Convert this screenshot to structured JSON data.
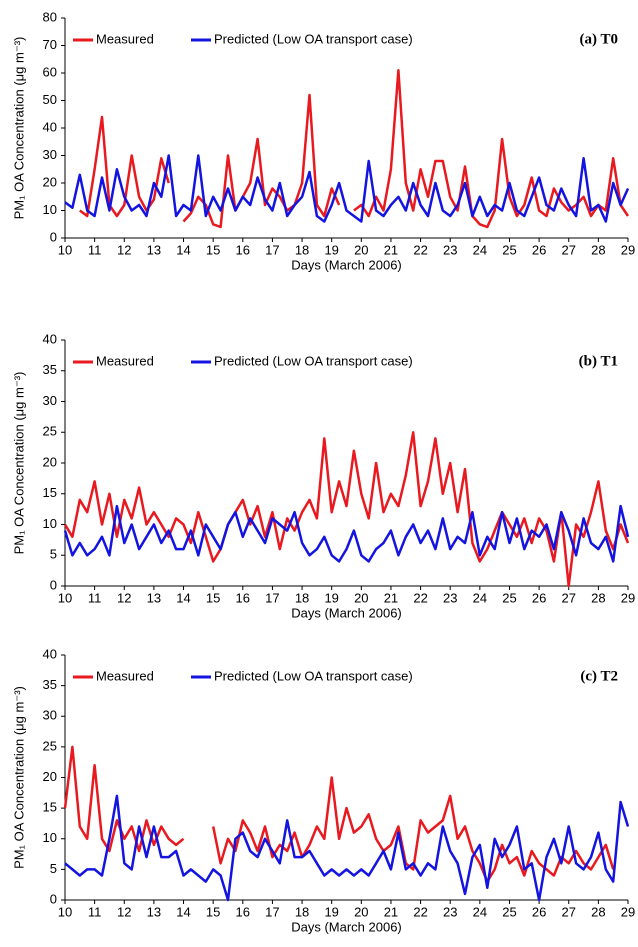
{
  "chart_data": [
    {
      "type": "line",
      "panel_label": "(a) T0",
      "xlabel": "Days (March 2006)",
      "ylabel": "PM₁ OA Concentration (μg m⁻³)",
      "xlim": [
        10,
        29
      ],
      "xticks": [
        10,
        11,
        12,
        13,
        14,
        15,
        16,
        17,
        18,
        19,
        20,
        21,
        22,
        23,
        24,
        25,
        26,
        27,
        28,
        29
      ],
      "ylim": [
        0,
        80
      ],
      "yticks": [
        0,
        10,
        20,
        30,
        40,
        50,
        60,
        70,
        80
      ],
      "legend": "top-left",
      "x": [
        10,
        10.25,
        10.5,
        10.75,
        11,
        11.25,
        11.5,
        11.75,
        12,
        12.25,
        12.5,
        12.75,
        13,
        13.25,
        13.5,
        13.75,
        14,
        14.25,
        14.5,
        14.75,
        15,
        15.25,
        15.5,
        15.75,
        16,
        16.25,
        16.5,
        16.75,
        17,
        17.25,
        17.5,
        17.75,
        18,
        18.25,
        18.5,
        18.75,
        19,
        19.25,
        19.5,
        19.75,
        20,
        20.25,
        20.5,
        20.75,
        21,
        21.25,
        21.5,
        21.75,
        22,
        22.25,
        22.5,
        22.75,
        23,
        23.25,
        23.5,
        23.75,
        24,
        24.25,
        24.5,
        24.75,
        25,
        25.25,
        25.5,
        25.75,
        26,
        26.25,
        26.5,
        26.75,
        27,
        27.25,
        27.5,
        27.75,
        28,
        28.25,
        28.5,
        28.75,
        29
      ],
      "series": [
        {
          "name": "Measured",
          "color": "#e8191f",
          "values": [
            null,
            null,
            10,
            8,
            25,
            44,
            12,
            8,
            12,
            30,
            15,
            10,
            14,
            29,
            20,
            null,
            6,
            9,
            15,
            12,
            5,
            4,
            30,
            10,
            15,
            20,
            36,
            12,
            18,
            15,
            10,
            12,
            20,
            52,
            12,
            8,
            18,
            12,
            null,
            10,
            12,
            8,
            15,
            10,
            25,
            61,
            20,
            10,
            25,
            15,
            28,
            28,
            15,
            10,
            26,
            8,
            5,
            4,
            10,
            36,
            15,
            8,
            12,
            22,
            10,
            8,
            18,
            13,
            10,
            12,
            15,
            8,
            12,
            10,
            29,
            12,
            8
          ]
        },
        {
          "name": "Predicted (Low OA transport case)",
          "color": "#1414e0",
          "values": [
            13,
            11,
            23,
            10,
            8,
            22,
            10,
            25,
            15,
            10,
            12,
            8,
            20,
            15,
            30,
            8,
            12,
            10,
            30,
            8,
            15,
            10,
            18,
            10,
            15,
            12,
            22,
            14,
            10,
            20,
            8,
            12,
            15,
            24,
            8,
            6,
            12,
            20,
            10,
            8,
            6,
            28,
            10,
            8,
            12,
            15,
            10,
            20,
            12,
            8,
            20,
            10,
            8,
            12,
            20,
            8,
            15,
            8,
            12,
            10,
            20,
            10,
            8,
            15,
            22,
            12,
            10,
            18,
            12,
            8,
            29,
            10,
            12,
            6,
            20,
            12,
            18
          ]
        }
      ]
    },
    {
      "type": "line",
      "panel_label": "(b) T1",
      "xlabel": "Days (March 2006)",
      "ylabel": "PM₁ OA Concentration (μg m⁻³)",
      "xlim": [
        10,
        29
      ],
      "xticks": [
        10,
        11,
        12,
        13,
        14,
        15,
        16,
        17,
        18,
        19,
        20,
        21,
        22,
        23,
        24,
        25,
        26,
        27,
        28,
        29
      ],
      "ylim": [
        0,
        40
      ],
      "yticks": [
        0,
        5,
        10,
        15,
        20,
        25,
        30,
        35,
        40
      ],
      "legend": "top-left",
      "x": [
        10,
        10.25,
        10.5,
        10.75,
        11,
        11.25,
        11.5,
        11.75,
        12,
        12.25,
        12.5,
        12.75,
        13,
        13.25,
        13.5,
        13.75,
        14,
        14.25,
        14.5,
        14.75,
        15,
        15.25,
        15.5,
        15.75,
        16,
        16.25,
        16.5,
        16.75,
        17,
        17.25,
        17.5,
        17.75,
        18,
        18.25,
        18.5,
        18.75,
        19,
        19.25,
        19.5,
        19.75,
        20,
        20.25,
        20.5,
        20.75,
        21,
        21.25,
        21.5,
        21.75,
        22,
        22.25,
        22.5,
        22.75,
        23,
        23.25,
        23.5,
        23.75,
        24,
        24.25,
        24.5,
        24.75,
        25,
        25.25,
        25.5,
        25.75,
        26,
        26.25,
        26.5,
        26.75,
        27,
        27.25,
        27.5,
        27.75,
        28,
        28.25,
        28.5,
        28.75,
        29
      ],
      "series": [
        {
          "name": "Measured",
          "color": "#e8191f",
          "values": [
            10,
            8,
            14,
            12,
            17,
            10,
            15,
            8,
            14,
            11,
            16,
            10,
            12,
            10,
            8,
            11,
            10,
            7,
            12,
            8,
            4,
            6,
            10,
            12,
            14,
            10,
            13,
            8,
            12,
            6,
            11,
            9,
            12,
            14,
            11,
            24,
            12,
            17,
            13,
            22,
            15,
            11,
            20,
            12,
            15,
            13,
            18,
            25,
            13,
            17,
            24,
            15,
            20,
            12,
            19,
            7,
            4,
            6,
            9,
            12,
            10,
            8,
            11,
            7,
            11,
            9,
            4,
            12,
            0,
            10,
            8,
            12,
            17,
            9,
            6,
            10,
            7
          ]
        },
        {
          "name": "Predicted (Low OA transport case)",
          "color": "#1414e0",
          "values": [
            9,
            5,
            7,
            5,
            6,
            8,
            5,
            13,
            7,
            10,
            6,
            8,
            10,
            7,
            9,
            6,
            6,
            9,
            5,
            10,
            8,
            6,
            10,
            12,
            8,
            11,
            9,
            7,
            11,
            10,
            9,
            12,
            7,
            5,
            6,
            8,
            5,
            4,
            6,
            9,
            5,
            4,
            6,
            7,
            9,
            5,
            8,
            10,
            7,
            9,
            6,
            11,
            6,
            8,
            7,
            12,
            5,
            8,
            6,
            12,
            7,
            11,
            6,
            9,
            8,
            10,
            6,
            12,
            9,
            5,
            11,
            7,
            6,
            8,
            4,
            13,
            8
          ]
        }
      ]
    },
    {
      "type": "line",
      "panel_label": "(c) T2",
      "xlabel": "Days (March 2006)",
      "ylabel": "PM₁ OA Concentration (μg m⁻³)",
      "xlim": [
        10,
        29
      ],
      "xticks": [
        10,
        11,
        12,
        13,
        14,
        15,
        16,
        17,
        18,
        19,
        20,
        21,
        22,
        23,
        24,
        25,
        26,
        27,
        28,
        29
      ],
      "ylim": [
        0,
        40
      ],
      "yticks": [
        0,
        5,
        10,
        15,
        20,
        25,
        30,
        35,
        40
      ],
      "legend": "top-left",
      "x": [
        10,
        10.25,
        10.5,
        10.75,
        11,
        11.25,
        11.5,
        11.75,
        12,
        12.25,
        12.5,
        12.75,
        13,
        13.25,
        13.5,
        13.75,
        14,
        14.25,
        14.5,
        14.75,
        15,
        15.25,
        15.5,
        15.75,
        16,
        16.25,
        16.5,
        16.75,
        17,
        17.25,
        17.5,
        17.75,
        18,
        18.25,
        18.5,
        18.75,
        19,
        19.25,
        19.5,
        19.75,
        20,
        20.25,
        20.5,
        20.75,
        21,
        21.25,
        21.5,
        21.75,
        22,
        22.25,
        22.5,
        22.75,
        23,
        23.25,
        23.5,
        23.75,
        24,
        24.25,
        24.5,
        24.75,
        25,
        25.25,
        25.5,
        25.75,
        26,
        26.25,
        26.5,
        26.75,
        27,
        27.25,
        27.5,
        27.75,
        28,
        28.25,
        28.5,
        28.75,
        29
      ],
      "series": [
        {
          "name": "Measured",
          "color": "#e8191f",
          "values": [
            15,
            25,
            12,
            10,
            22,
            10,
            8,
            13,
            10,
            12,
            8,
            13,
            9,
            12,
            10,
            9,
            10,
            null,
            null,
            null,
            12,
            6,
            10,
            8,
            13,
            11,
            8,
            12,
            7,
            9,
            8,
            11,
            7,
            9,
            12,
            10,
            20,
            10,
            15,
            11,
            12,
            14,
            10,
            8,
            9,
            12,
            6,
            5,
            13,
            11,
            12,
            13,
            17,
            10,
            12,
            8,
            6,
            3,
            5,
            9,
            6,
            7,
            4,
            8,
            6,
            5,
            4,
            7,
            6,
            8,
            6,
            5,
            7,
            9,
            5,
            null,
            null
          ]
        },
        {
          "name": "Predicted (Low OA transport case)",
          "color": "#1414e0",
          "values": [
            6,
            5,
            4,
            5,
            5,
            4,
            10,
            17,
            6,
            5,
            12,
            7,
            12,
            7,
            7,
            8,
            4,
            5,
            4,
            3,
            5,
            4,
            0,
            10,
            11,
            8,
            7,
            10,
            8,
            6,
            13,
            7,
            7,
            8,
            6,
            4,
            5,
            4,
            5,
            4,
            5,
            4,
            6,
            8,
            5,
            11,
            5,
            6,
            4,
            6,
            5,
            12,
            8,
            6,
            1,
            7,
            9,
            2,
            10,
            7,
            9,
            12,
            5,
            6,
            0,
            7,
            10,
            6,
            12,
            6,
            5,
            7,
            11,
            5,
            3,
            16,
            12
          ]
        }
      ]
    }
  ]
}
